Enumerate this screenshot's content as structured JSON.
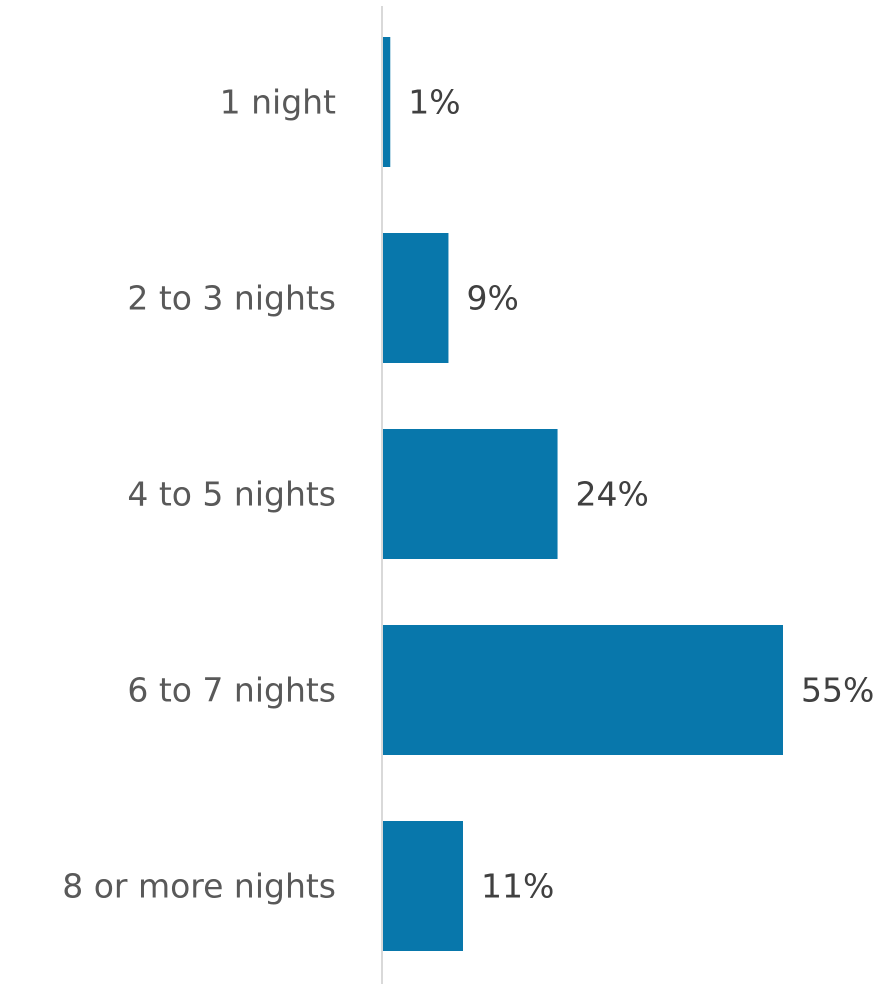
{
  "chart_data": {
    "type": "bar",
    "orientation": "horizontal",
    "categories": [
      "1 night",
      "2 to 3 nights",
      "4 to 5 nights",
      "6 to 7 nights",
      "8 or more nights"
    ],
    "values": [
      1,
      9,
      24,
      55,
      11
    ],
    "value_labels": [
      "1%",
      "9%",
      "24%",
      "55%",
      "11%"
    ],
    "unit": "%",
    "xlim": [
      0,
      55
    ],
    "title": "",
    "xlabel": "",
    "ylabel": "",
    "grid": false,
    "legend": "none",
    "colors": {
      "bar": "#0877ab",
      "axis": "#d9d9d9",
      "category_text": "#595959",
      "value_text": "#404040"
    }
  }
}
